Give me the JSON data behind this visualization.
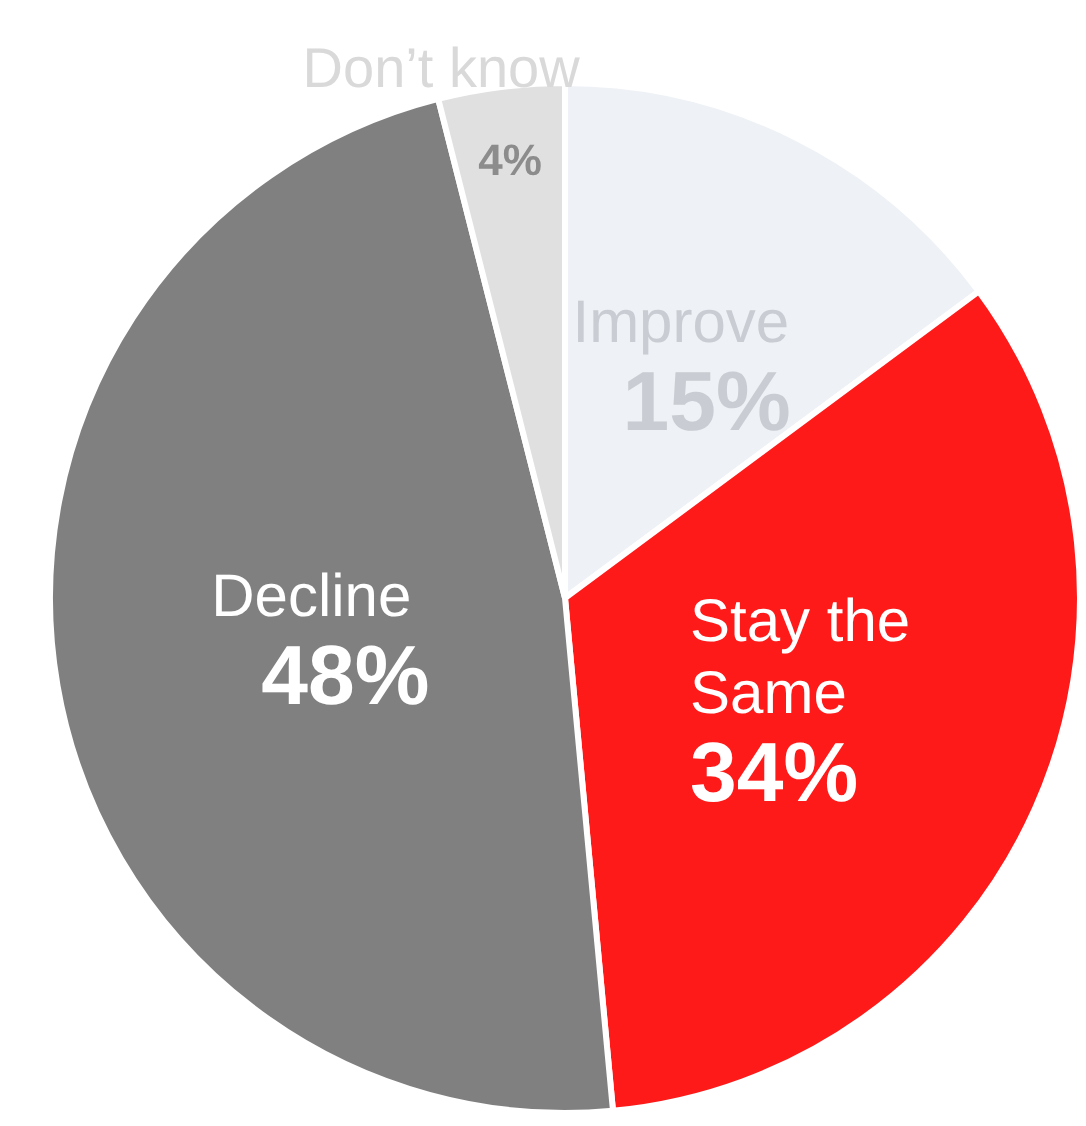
{
  "chart_data": {
    "type": "pie",
    "categories": [
      "Improve",
      "Stay the Same",
      "Decline",
      "Don’t know"
    ],
    "values": [
      15,
      34,
      48,
      4
    ],
    "value_labels": [
      "15%",
      "34%",
      "48%",
      "4%"
    ],
    "colors": [
      "#eef1f5",
      "#ff1a1a",
      "#808080",
      "#e0e0e0"
    ],
    "legend": false
  }
}
